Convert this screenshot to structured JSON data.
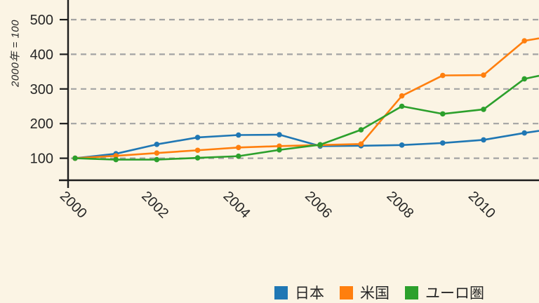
{
  "figure": {
    "background": "#fbf4e4",
    "axis_color": "#1c1c1c",
    "grid_color": "#a3a3a3",
    "text_color": "#262626"
  },
  "chart_data": {
    "type": "line",
    "title": "",
    "xlabel": "",
    "ylabel": "2000年 = 100",
    "x": [
      2000,
      2001,
      2002,
      2003,
      2004,
      2005,
      2006,
      2007,
      2008,
      2009,
      2010,
      2011
    ],
    "xticks": [
      2000,
      2002,
      2004,
      2006,
      2008,
      2010
    ],
    "yticks": [
      100,
      200,
      300,
      400,
      500
    ],
    "xlim": [
      1999.8,
      2011.4
    ],
    "ylim": [
      35,
      560
    ],
    "grid": "dashed-horizontal",
    "marker": "circle",
    "legend_position": "bottom",
    "series": [
      {
        "name": "日本",
        "color": "#1f77b4",
        "values": [
          100,
          113,
          140,
          160,
          167,
          168,
          135,
          136,
          138,
          144,
          153,
          173
        ],
        "right_edge_value": 179
      },
      {
        "name": "米国",
        "color": "#ff7f0e",
        "values": [
          100,
          107,
          115,
          123,
          131,
          135,
          138,
          141,
          280,
          339,
          340,
          439
        ],
        "right_edge_value": 446
      },
      {
        "name": "ユーロ圏",
        "color": "#2ca02c",
        "values": [
          100,
          96,
          96,
          101,
          106,
          124,
          139,
          182,
          250,
          228,
          241,
          329
        ],
        "right_edge_value": 338
      }
    ]
  }
}
